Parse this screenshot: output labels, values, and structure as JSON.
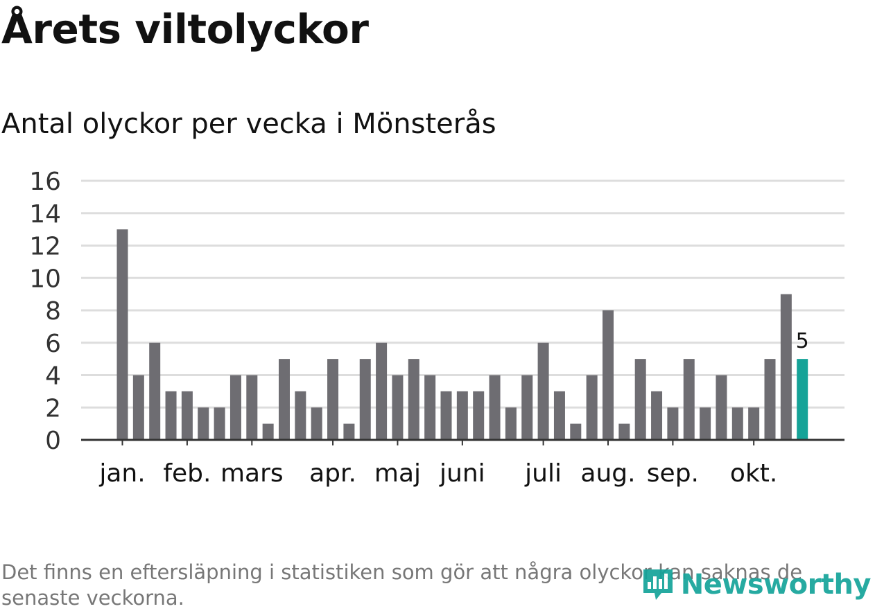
{
  "header": {
    "title": "Årets viltolyckor",
    "subtitle": "Antal olyckor per vecka i Mönsterås"
  },
  "footer": {
    "note": "Det finns en eftersläpning i statistiken som gör att några olyckor kan saknas de senaste veckorna.",
    "brand": "Newsworthy",
    "brand_icon": "newsworthy-logo-icon"
  },
  "colors": {
    "bar": "#6e6d72",
    "highlight": "#16a398",
    "grid": "#dddddd",
    "axis": "#333333",
    "text": "#111111",
    "note": "#777777"
  },
  "chart_data": {
    "type": "bar",
    "title": "Antal olyckor per vecka i Mönsterås",
    "xlabel": "",
    "ylabel": "",
    "ylim": [
      0,
      16
    ],
    "yticks": [
      0,
      2,
      4,
      6,
      8,
      10,
      12,
      14,
      16
    ],
    "grid": true,
    "weeks": [
      1,
      2,
      3,
      4,
      5,
      6,
      7,
      8,
      9,
      10,
      11,
      12,
      13,
      14,
      15,
      16,
      17,
      18,
      19,
      20,
      21,
      22,
      23,
      24,
      25,
      26,
      27,
      28,
      29,
      30,
      31,
      32,
      33,
      34,
      35,
      36,
      37,
      38,
      39,
      40,
      41,
      42,
      43
    ],
    "values": [
      13,
      4,
      6,
      3,
      3,
      2,
      2,
      4,
      4,
      1,
      5,
      3,
      2,
      5,
      1,
      5,
      6,
      4,
      5,
      4,
      3,
      3,
      3,
      4,
      2,
      4,
      6,
      3,
      1,
      4,
      8,
      1,
      5,
      3,
      2,
      5,
      2,
      4,
      2,
      2,
      5,
      9,
      5
    ],
    "highlight_index": 42,
    "highlight_label": "5",
    "month_labels": [
      {
        "label": "jan.",
        "week": 1
      },
      {
        "label": "feb.",
        "week": 5
      },
      {
        "label": "mars",
        "week": 9
      },
      {
        "label": "apr.",
        "week": 14
      },
      {
        "label": "maj",
        "week": 18
      },
      {
        "label": "juni",
        "week": 22
      },
      {
        "label": "juli",
        "week": 27
      },
      {
        "label": "aug.",
        "week": 31
      },
      {
        "label": "sep.",
        "week": 35
      },
      {
        "label": "okt.",
        "week": 40
      }
    ]
  }
}
